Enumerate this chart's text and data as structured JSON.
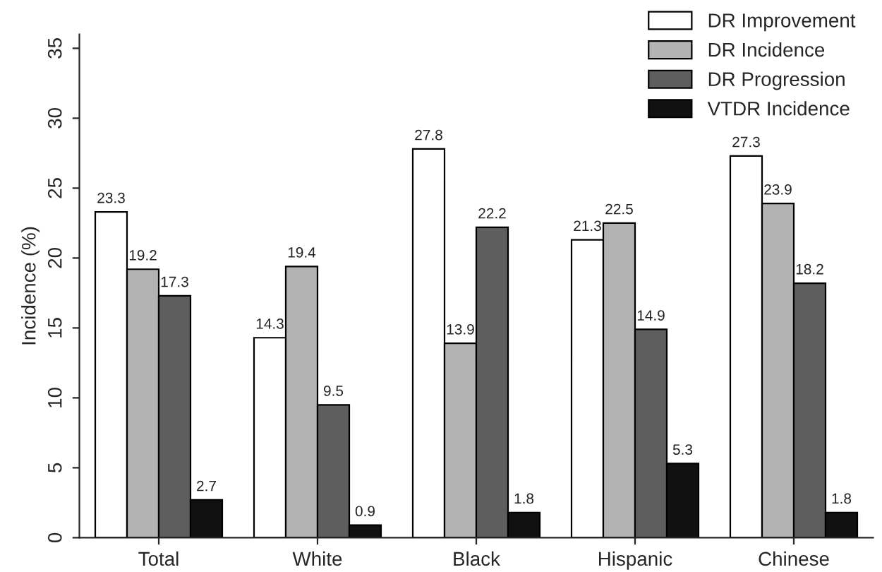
{
  "chart_data": {
    "type": "bar",
    "ylabel": "Incidence (%)",
    "categories": [
      "Total",
      "White",
      "Black",
      "Hispanic",
      "Chinese"
    ],
    "series": [
      {
        "name": "DR Improvement",
        "color": "#ffffff",
        "values": [
          23.3,
          14.3,
          27.8,
          21.3,
          27.3
        ]
      },
      {
        "name": "DR Incidence",
        "color": "#b3b3b3",
        "values": [
          19.2,
          19.4,
          13.9,
          22.5,
          23.9
        ]
      },
      {
        "name": "DR Progression",
        "color": "#5e5e5e",
        "values": [
          17.3,
          9.5,
          22.2,
          14.9,
          18.2
        ]
      },
      {
        "name": "VTDR Incidence",
        "color": "#111111",
        "values": [
          2.7,
          0.9,
          1.8,
          5.3,
          1.8
        ]
      }
    ],
    "ylim": [
      0,
      36
    ],
    "yticks": [
      0,
      5,
      10,
      15,
      20,
      25,
      30,
      35
    ],
    "data_labels": true,
    "legend": "top right",
    "grid": false
  }
}
